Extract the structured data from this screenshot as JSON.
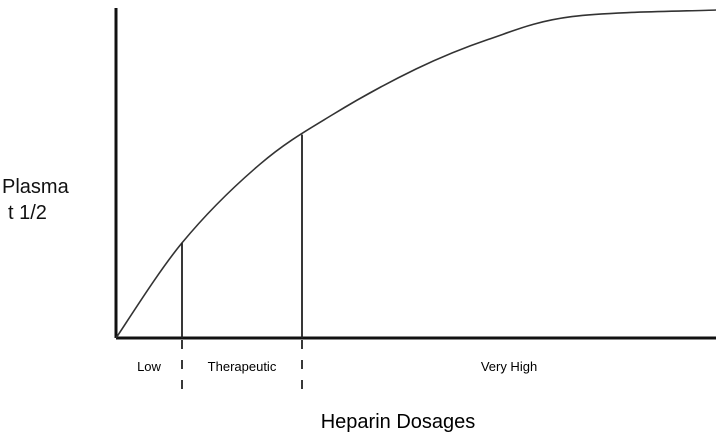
{
  "chart_data": {
    "type": "line",
    "title": "",
    "xlabel": "Heparin Dosages",
    "ylabel_lines": [
      "Plasma",
      "t 1/2"
    ],
    "x_ticks": false,
    "y_ticks": false,
    "grid": false,
    "series": [
      {
        "values": [
          [
            0,
            0
          ],
          [
            0.11,
            0.29
          ],
          [
            0.24,
            0.53
          ],
          [
            0.36,
            0.68
          ],
          [
            0.5,
            0.82
          ],
          [
            0.62,
            0.91
          ],
          [
            0.76,
            0.98
          ],
          [
            1.0,
            1.0
          ]
        ]
      }
    ],
    "reference_lines": [
      {
        "x": 0.11,
        "y": 0.29
      },
      {
        "x": 0.31,
        "y": 0.62
      }
    ],
    "regions": [
      {
        "label": "Low",
        "from": 0,
        "to": 0.11
      },
      {
        "label": "Therapeutic",
        "from": 0.11,
        "to": 0.31
      },
      {
        "label": "Very High",
        "from": 0.31,
        "to": 1.0
      }
    ]
  }
}
